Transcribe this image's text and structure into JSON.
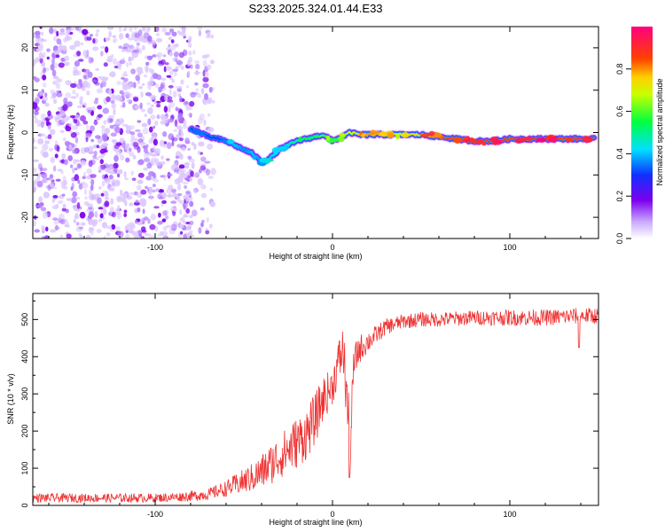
{
  "figure_title": "S233.2025.324.01.44.E33",
  "chart_data": [
    {
      "type": "heatmap",
      "title": "S233.2025.324.01.44.E33",
      "xlabel": "Height of straight line (km)",
      "ylabel": "Frequency (Hz)",
      "xlim": [
        -169,
        150
      ],
      "ylim": [
        -25,
        25
      ],
      "xticks": [
        -100,
        0,
        100
      ],
      "yticks": [
        -20,
        -10,
        0,
        10,
        20
      ],
      "colorbar": {
        "label": "Normalized spectral amplitude",
        "range": [
          0,
          1
        ],
        "ticks": [
          0.0,
          0.2,
          0.4,
          0.6,
          0.8
        ],
        "tick_labels": [
          "0.0",
          "0.2",
          "0.4",
          "0.6",
          "0.8"
        ]
      },
      "noise_region_x": [
        -169,
        -67
      ],
      "ridge": {
        "x": [
          -80,
          -75,
          -70,
          -65,
          -60,
          -55,
          -50,
          -45,
          -40,
          -35,
          -30,
          -25,
          -20,
          -15,
          -10,
          -5,
          0,
          5,
          10,
          15,
          20,
          30,
          40,
          50,
          60,
          70,
          80,
          90,
          100,
          110,
          120,
          130,
          140,
          148
        ],
        "freq": [
          1,
          0,
          -1,
          -1.5,
          -2,
          -3,
          -4,
          -5,
          -7,
          -6,
          -4,
          -3,
          -2,
          -1.5,
          -1,
          -0.5,
          -2,
          -1,
          0,
          -0.5,
          -0.5,
          -0.5,
          -0.5,
          -0.5,
          -1,
          -1.5,
          -2,
          -2,
          -1.5,
          -1.5,
          -1.5,
          -1.5,
          -1.5,
          -1.5
        ],
        "amplitude": [
          0.3,
          0.35,
          0.3,
          0.3,
          0.35,
          0.4,
          0.35,
          0.4,
          0.35,
          0.4,
          0.45,
          0.45,
          0.5,
          0.55,
          0.55,
          0.6,
          0.55,
          0.6,
          0.7,
          0.75,
          0.8,
          0.75,
          0.7,
          0.75,
          0.85,
          0.85,
          0.9,
          0.9,
          0.85,
          0.9,
          0.9,
          0.85,
          0.9,
          0.9
        ]
      }
    },
    {
      "type": "line",
      "xlabel": "Height of straight line (km)",
      "ylabel": "SNR (10 * v/v)",
      "xlim": [
        -169,
        150
      ],
      "ylim": [
        0,
        570
      ],
      "xticks": [
        -100,
        0,
        100
      ],
      "yticks": [
        0,
        100,
        200,
        300,
        400,
        500
      ],
      "color": "#ee3333",
      "x": [
        -169,
        -150,
        -120,
        -100,
        -90,
        -80,
        -70,
        -65,
        -60,
        -55,
        -50,
        -45,
        -40,
        -35,
        -30,
        -25,
        -20,
        -15,
        -10,
        -5,
        0,
        3,
        6,
        8,
        10,
        12,
        15,
        20,
        25,
        30,
        40,
        50,
        60,
        80,
        100,
        120,
        140,
        150
      ],
      "snr": [
        20,
        20,
        20,
        20,
        22,
        25,
        30,
        38,
        45,
        55,
        65,
        75,
        90,
        110,
        130,
        150,
        170,
        190,
        230,
        290,
        320,
        380,
        420,
        300,
        150,
        380,
        420,
        440,
        460,
        480,
        495,
        500,
        500,
        505,
        505,
        505,
        510,
        510
      ],
      "spread": [
        12,
        12,
        12,
        12,
        12,
        14,
        16,
        18,
        22,
        28,
        34,
        40,
        48,
        55,
        60,
        65,
        70,
        70,
        70,
        60,
        50,
        60,
        70,
        90,
        80,
        50,
        40,
        30,
        25,
        22,
        20,
        20,
        20,
        20,
        22,
        22,
        22,
        22
      ],
      "dips": [
        {
          "x": 9.5,
          "snr": 75
        },
        {
          "x": 139,
          "snr": 425
        }
      ]
    }
  ]
}
